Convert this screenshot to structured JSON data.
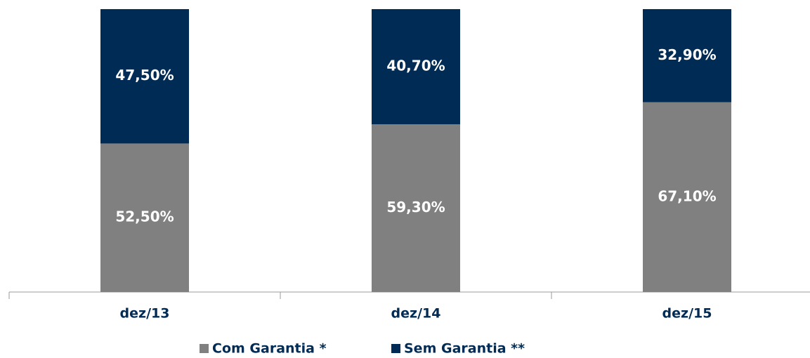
{
  "chart_data": {
    "type": "stacked_bar",
    "categories": [
      "dez/13",
      "dez/14",
      "dez/15"
    ],
    "series": [
      {
        "name": "Com Garantia *",
        "color": "#808080",
        "values": [
          52.5,
          59.3,
          67.1
        ],
        "value_labels": [
          "52,50%",
          "59,30%",
          "67,10%"
        ]
      },
      {
        "name": "Sem Garantia **",
        "color": "#002b54",
        "values": [
          47.5,
          40.7,
          32.9
        ],
        "value_labels": [
          "47,50%",
          "40,70%",
          "32,90%"
        ]
      }
    ],
    "ylim": [
      0,
      100
    ],
    "legend": "bottom"
  }
}
